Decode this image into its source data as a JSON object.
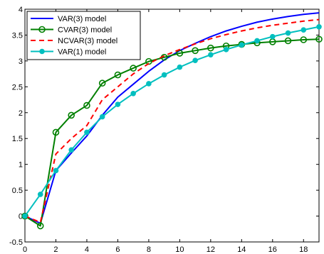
{
  "chart_data": {
    "type": "line",
    "title": "",
    "xlabel": "",
    "ylabel": "",
    "xlim": [
      0,
      19
    ],
    "ylim": [
      -0.5,
      4
    ],
    "xticks": [
      "0",
      "2",
      "4",
      "6",
      "8",
      "10",
      "12",
      "14",
      "16",
      "18"
    ],
    "yticks": [
      "-0.5",
      "0",
      "0.5",
      "1",
      "1.5",
      "2",
      "2.5",
      "3",
      "3.5",
      "4"
    ],
    "grid": false,
    "legend_position": "top-left",
    "x": [
      0,
      1,
      2,
      3,
      4,
      5,
      6,
      7,
      8,
      9,
      10,
      11,
      12,
      13,
      14,
      15,
      16,
      17,
      18,
      19
    ],
    "series": [
      {
        "name": "VAR(3) model",
        "color": "#0000ff",
        "style": "solid",
        "marker": "none",
        "values": [
          0,
          -0.14,
          0.88,
          1.22,
          1.55,
          1.95,
          2.3,
          2.55,
          2.8,
          3.02,
          3.2,
          3.34,
          3.47,
          3.58,
          3.67,
          3.75,
          3.81,
          3.86,
          3.9,
          3.93
        ]
      },
      {
        "name": "CVAR(3) model",
        "color": "#008000",
        "style": "solid",
        "marker": "circle",
        "values": [
          0,
          -0.19,
          1.62,
          1.95,
          2.14,
          2.57,
          2.73,
          2.86,
          2.99,
          3.07,
          3.15,
          3.2,
          3.25,
          3.29,
          3.32,
          3.35,
          3.37,
          3.39,
          3.41,
          3.42
        ]
      },
      {
        "name": "NCVAR(3) model",
        "color": "#ff0000",
        "style": "dashed",
        "marker": "none",
        "values": [
          0,
          -0.12,
          1.2,
          1.5,
          1.75,
          2.25,
          2.5,
          2.75,
          2.95,
          3.1,
          3.22,
          3.33,
          3.43,
          3.51,
          3.58,
          3.64,
          3.69,
          3.73,
          3.77,
          3.8
        ]
      },
      {
        "name": "VAR(1) model",
        "color": "#00bfbf",
        "style": "solid",
        "marker": "dot",
        "values": [
          0,
          0.42,
          0.88,
          1.28,
          1.62,
          1.92,
          2.16,
          2.37,
          2.56,
          2.73,
          2.88,
          3.01,
          3.12,
          3.22,
          3.31,
          3.39,
          3.47,
          3.54,
          3.6,
          3.66
        ]
      }
    ]
  }
}
